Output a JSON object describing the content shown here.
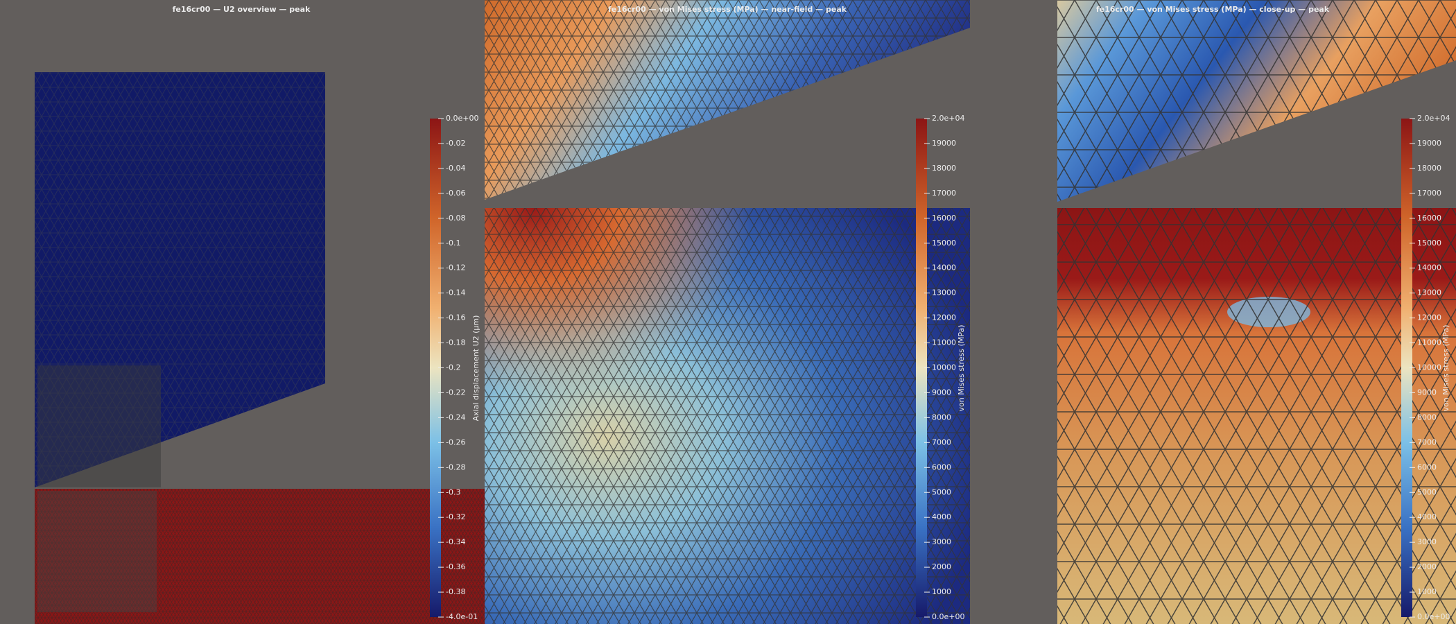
{
  "panels": [
    {
      "title": "fe16cr00 — U2 overview — peak",
      "colorbar": {
        "title": "Axial displacement U2 (μm)",
        "ticks": [
          "0.0e+00",
          "-0.02",
          "-0.04",
          "-0.06",
          "-0.08",
          "-0.1",
          "-0.12",
          "-0.14",
          "-0.16",
          "-0.18",
          "-0.2",
          "-0.22",
          "-0.24",
          "-0.26",
          "-0.28",
          "-0.3",
          "-0.32",
          "-0.34",
          "-0.36",
          "-0.38",
          "-4.0e-01"
        ]
      }
    },
    {
      "title": "fe16cr00 — von Mises stress (MPa) — near-field — peak",
      "colorbar": {
        "title": "von Mises stress (MPa)",
        "ticks": [
          "2.0e+04",
          "19000",
          "18000",
          "17000",
          "16000",
          "15000",
          "14000",
          "13000",
          "12000",
          "11000",
          "10000",
          "9000",
          "8000",
          "7000",
          "6000",
          "5000",
          "4000",
          "3000",
          "2000",
          "1000",
          "0.0e+00"
        ]
      }
    },
    {
      "title": "fe16cr00 — von Mises stress (MPa) — close-up — peak",
      "colorbar": {
        "title": "von Mises stress (MPa)",
        "ticks": [
          "2.0e+04",
          "19000",
          "18000",
          "17000",
          "16000",
          "15000",
          "14000",
          "13000",
          "12000",
          "11000",
          "10000",
          "9000",
          "8000",
          "7000",
          "6000",
          "5000",
          "4000",
          "3000",
          "2000",
          "1000",
          "0.0e+00"
        ]
      }
    }
  ]
}
